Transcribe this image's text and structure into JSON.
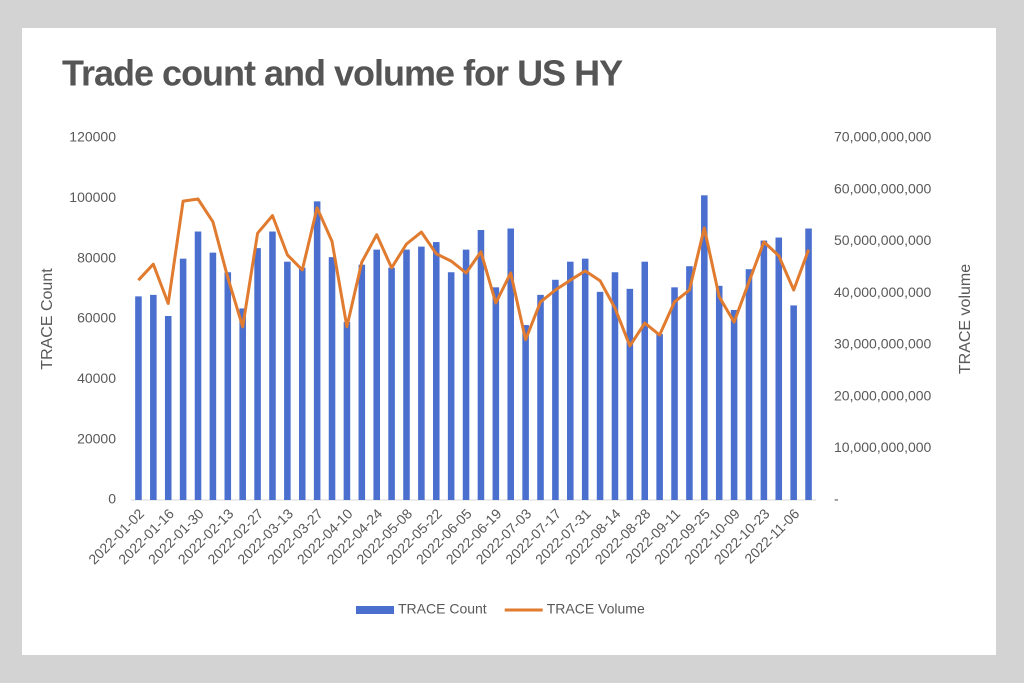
{
  "chart_data": {
    "type": "bar-line",
    "title": "Trade count and volume  for US HY",
    "y_label": "TRACE Count",
    "y2_label": "TRACE volume",
    "categories": [
      "2022-01-02",
      null,
      "2022-01-16",
      null,
      "2022-01-30",
      null,
      "2022-02-13",
      null,
      "2022-02-27",
      null,
      "2022-03-13",
      null,
      "2022-03-27",
      null,
      "2022-04-10",
      null,
      "2022-04-24",
      null,
      "2022-05-08",
      null,
      "2022-05-22",
      null,
      "2022-06-05",
      null,
      "2022-06-19",
      null,
      "2022-07-03",
      null,
      "2022-07-17",
      null,
      "2022-07-31",
      null,
      "2022-08-14",
      null,
      "2022-08-28",
      null,
      "2022-09-11",
      null,
      "2022-09-25",
      null,
      "2022-10-09",
      null,
      "2022-10-23",
      null,
      "2022-11-06",
      null
    ],
    "series": [
      {
        "name": "TRACE Count",
        "type": "bar",
        "color": "#4a6fce",
        "values": [
          67500,
          68000,
          61000,
          80000,
          89000,
          82000,
          75500,
          63500,
          83500,
          89000,
          79000,
          77000,
          99000,
          80500,
          59000,
          78000,
          83000,
          77000,
          83000,
          84000,
          85500,
          75500,
          83000,
          89500,
          70500,
          90000,
          58000,
          68000,
          73000,
          79000,
          80000,
          69000,
          75500,
          70000,
          79000,
          55000,
          70500,
          77500,
          101000,
          71000,
          63000,
          76500,
          86000,
          87000,
          64500,
          90000
        ]
      },
      {
        "name": "TRACE Volume",
        "type": "line",
        "axis": "y2",
        "color": "#e07b2f",
        "values": [
          42500000000,
          45600000000,
          38000000000,
          57800000000,
          58200000000,
          53800000000,
          43000000000,
          33500000000,
          51600000000,
          55000000000,
          47400000000,
          44500000000,
          56500000000,
          50000000000,
          33500000000,
          46000000000,
          51300000000,
          44900000000,
          49500000000,
          51800000000,
          47600000000,
          46200000000,
          43900000000,
          48000000000,
          38100000000,
          43900000000,
          31000000000,
          38300000000,
          40600000000,
          42500000000,
          44300000000,
          42400000000,
          37100000000,
          29800000000,
          34200000000,
          31900000000,
          38300000000,
          40600000000,
          52600000000,
          39300000000,
          34400000000,
          42200000000,
          49900000000,
          47200000000,
          40600000000,
          48400000000
        ]
      }
    ],
    "ylim": [
      0,
      120000
    ],
    "yticks": [
      0,
      20000,
      40000,
      60000,
      80000,
      100000,
      120000
    ],
    "y2lim": [
      0,
      70000000000
    ],
    "y2ticks": [
      {
        "value": 0,
        "label": "-"
      },
      {
        "value": 10000000000,
        "label": "10,000,000,000"
      },
      {
        "value": 20000000000,
        "label": "20,000,000,000"
      },
      {
        "value": 30000000000,
        "label": "30,000,000,000"
      },
      {
        "value": 40000000000,
        "label": "40,000,000,000"
      },
      {
        "value": 50000000000,
        "label": "50,000,000,000"
      },
      {
        "value": 60000000000,
        "label": "60,000,000,000"
      },
      {
        "value": 70000000000,
        "label": "70,000,000,000"
      }
    ],
    "legend": "bottom"
  }
}
